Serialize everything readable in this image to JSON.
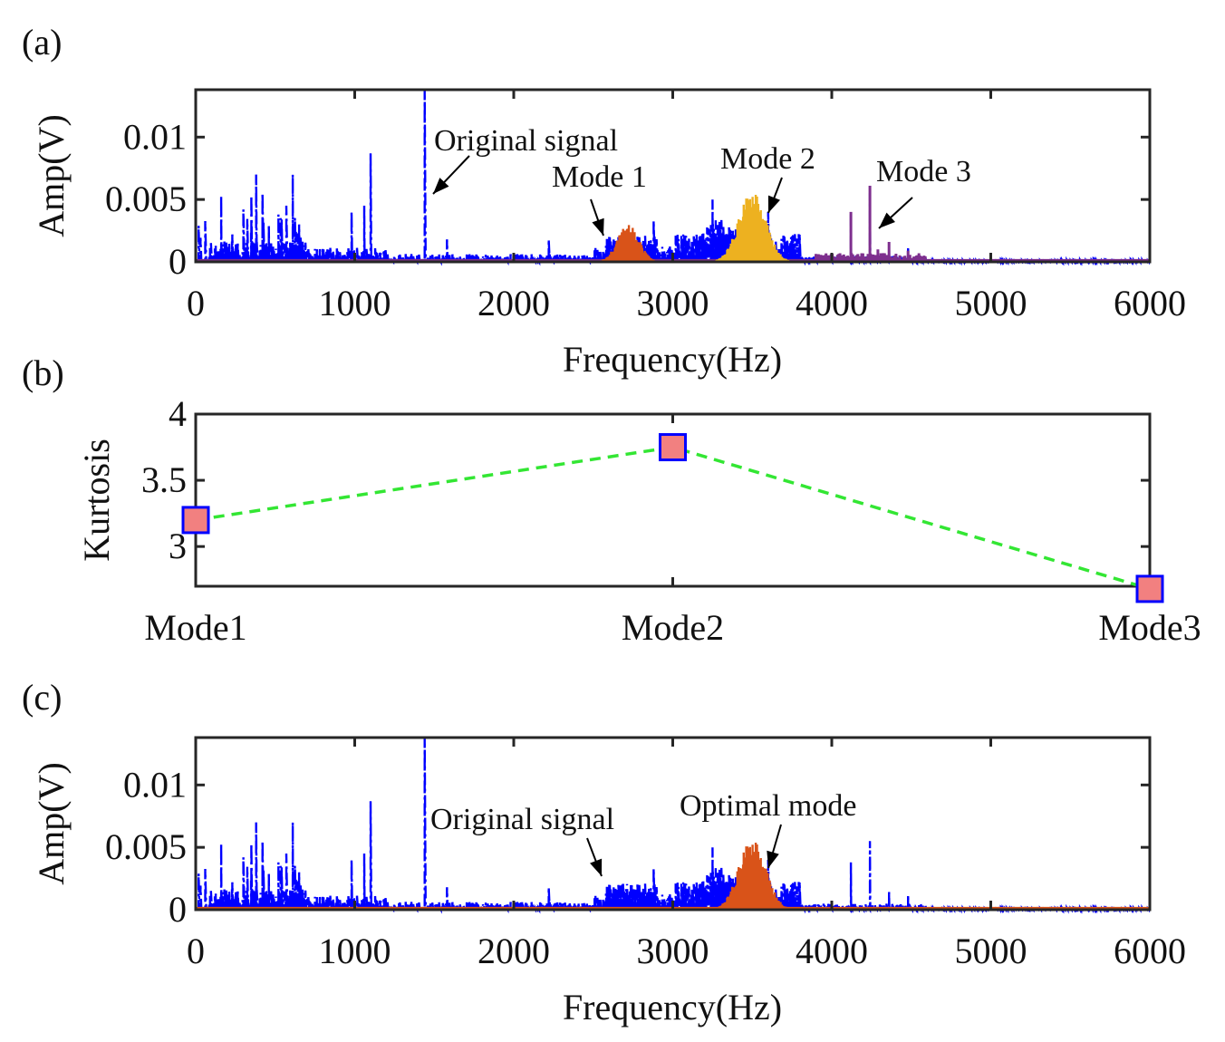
{
  "colors": {
    "original": "#0000ff",
    "mode1": "#d95319",
    "mode2": "#edb120",
    "mode3": "#7e2f8e",
    "optimal": "#d95319",
    "kurtosis_line": "#33e633",
    "marker_fill": "#f28080",
    "marker_edge": "#0000ff"
  },
  "chart_data": [
    {
      "id": "a",
      "panel_label": "(a)",
      "type": "line",
      "title": "",
      "xlabel": "Frequency(Hz)",
      "ylabel": "Amp(V)",
      "xlim": [
        0,
        6000
      ],
      "ylim": [
        0,
        0.0138
      ],
      "xticks": [
        "0",
        "1000",
        "2000",
        "3000",
        "4000",
        "5000",
        "6000"
      ],
      "yticks": [
        "0",
        "0.005",
        "0.01"
      ],
      "series": [
        {
          "name": "Original signal",
          "style": "dash-dot",
          "peaks": [
            [
              160,
              0.0053
            ],
            [
              230,
              0.0022
            ],
            [
              300,
              0.0042
            ],
            [
              350,
              0.0053
            ],
            [
              380,
              0.007
            ],
            [
              420,
              0.0055
            ],
            [
              460,
              0.003
            ],
            [
              520,
              0.0038
            ],
            [
              570,
              0.0045
            ],
            [
              610,
              0.007
            ],
            [
              650,
              0.003
            ],
            [
              980,
              0.004
            ],
            [
              1060,
              0.0045
            ],
            [
              1100,
              0.0087
            ],
            [
              1440,
              0.0138
            ],
            [
              1580,
              0.0018
            ],
            [
              2220,
              0.0018
            ],
            [
              2600,
              0.002
            ],
            [
              2880,
              0.0033
            ],
            [
              3250,
              0.005
            ],
            [
              3600,
              0.004
            ],
            [
              4120,
              0.0038
            ],
            [
              4240,
              0.0055
            ],
            [
              4360,
              0.0015
            ],
            [
              4480,
              0.0012
            ]
          ],
          "clusters": [
            [
              2600,
              2900,
              0.002
            ],
            [
              3100,
              3750,
              0.0035
            ]
          ]
        },
        {
          "name": "Mode 1",
          "clusters": [
            [
              2480,
              2880,
              0.003
            ]
          ]
        },
        {
          "name": "Mode 2",
          "clusters": [
            [
              3250,
              3750,
              0.0058
            ]
          ]
        },
        {
          "name": "Mode 3",
          "peaks": [
            [
              4120,
              0.004
            ],
            [
              4240,
              0.0061
            ],
            [
              4290,
              0.001
            ],
            [
              4360,
              0.0016
            ],
            [
              4480,
              0.0009
            ]
          ]
        }
      ],
      "annotations": [
        {
          "text": "Original signal",
          "x": 1440,
          "y": 0.0105
        },
        {
          "text": "Mode 1",
          "x": 2600,
          "y": 0.0075
        },
        {
          "text": "Mode 2",
          "x": 3600,
          "y": 0.0085
        },
        {
          "text": "Mode 3",
          "x": 4300,
          "y": 0.0073
        }
      ]
    },
    {
      "id": "b",
      "panel_label": "(b)",
      "type": "line",
      "title": "",
      "xlabel": "",
      "ylabel": "Kurtosis",
      "categories": [
        "Mode1",
        "Mode2",
        "Mode3"
      ],
      "values": [
        3.2,
        3.75,
        2.68
      ],
      "ylim": [
        2.7,
        4.0
      ],
      "yticks": [
        "3",
        "3.5",
        "4"
      ]
    },
    {
      "id": "c",
      "panel_label": "(c)",
      "type": "line",
      "title": "",
      "xlabel": "Frequency(Hz)",
      "ylabel": "Amp(V)",
      "xlim": [
        0,
        6000
      ],
      "ylim": [
        0,
        0.0138
      ],
      "xticks": [
        "0",
        "1000",
        "2000",
        "3000",
        "4000",
        "5000",
        "6000"
      ],
      "yticks": [
        "0",
        "0.005",
        "0.01"
      ],
      "series": [
        {
          "name": "Original signal",
          "style": "dash-dot"
        },
        {
          "name": "Optimal mode",
          "clusters": [
            [
              3250,
              3750,
              0.0058
            ]
          ]
        }
      ],
      "annotations": [
        {
          "text": "Original signal",
          "x": 2600,
          "y": 0.0085
        },
        {
          "text": "Optimal mode",
          "x": 3600,
          "y": 0.0085
        }
      ]
    }
  ]
}
